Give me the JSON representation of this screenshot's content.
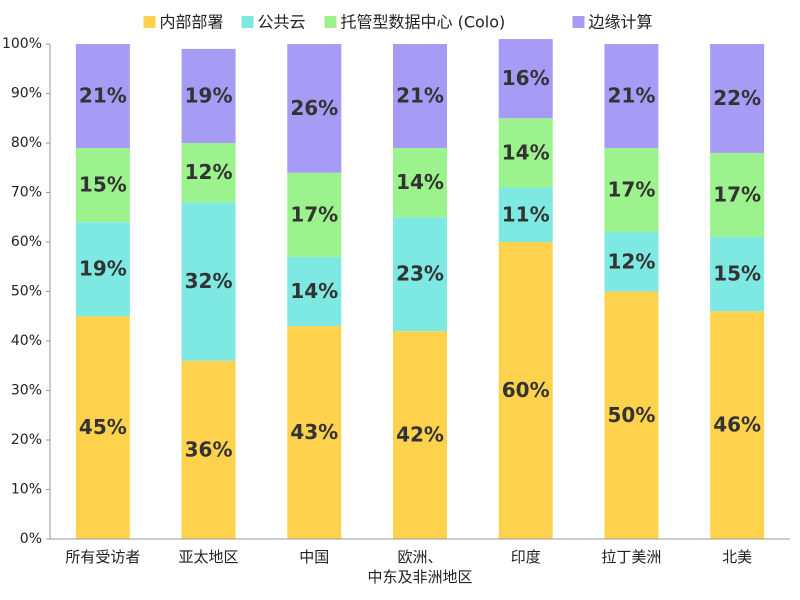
{
  "chart_data": {
    "type": "stacked_bar",
    "categories": [
      "所有受访者",
      "亚太地区",
      "中国",
      "欧洲、\n中东及非洲地区",
      "印度",
      "拉丁美洲",
      "北美"
    ],
    "series": [
      {
        "name": "内部部署",
        "color": "#ffd24d",
        "values": [
          45,
          36,
          43,
          42,
          60,
          50,
          46
        ],
        "value_labels": [
          "45%",
          "36%",
          "43%",
          "42%",
          "60%",
          "50%",
          "46%"
        ]
      },
      {
        "name": "公共云",
        "color": "#7ee8e2",
        "values": [
          19,
          32,
          14,
          23,
          11,
          12,
          15
        ],
        "value_labels": [
          "19%",
          "32%",
          "14%",
          "23%",
          "11%",
          "12%",
          "15%"
        ]
      },
      {
        "name": "托管型数据中心 (Colo)",
        "color": "#9cf28c",
        "values": [
          15,
          12,
          17,
          14,
          14,
          17,
          17
        ],
        "value_labels": [
          "15%",
          "12%",
          "17%",
          "14%",
          "14%",
          "17%",
          "17%"
        ]
      },
      {
        "name": "边缘计算",
        "color": "#a69bf5",
        "values": [
          21,
          19,
          26,
          21,
          16,
          21,
          22
        ],
        "value_labels": [
          "21%",
          "19%",
          "26%",
          "21%",
          "16%",
          "21%",
          "22%"
        ]
      }
    ],
    "ylim": [
      0,
      100
    ],
    "yticks": [
      {
        "value": 0,
        "label": "0%"
      },
      {
        "value": 10,
        "label": "10%"
      },
      {
        "value": 20,
        "label": "20%"
      },
      {
        "value": 30,
        "label": "30%"
      },
      {
        "value": 40,
        "label": "40%"
      },
      {
        "value": 50,
        "label": "50%"
      },
      {
        "value": 60,
        "label": "60%"
      },
      {
        "value": 70,
        "label": "70%"
      },
      {
        "value": 80,
        "label": "80%"
      },
      {
        "value": 90,
        "label": "90%"
      },
      {
        "value": 100,
        "label": "100%"
      }
    ],
    "legend": "top"
  }
}
